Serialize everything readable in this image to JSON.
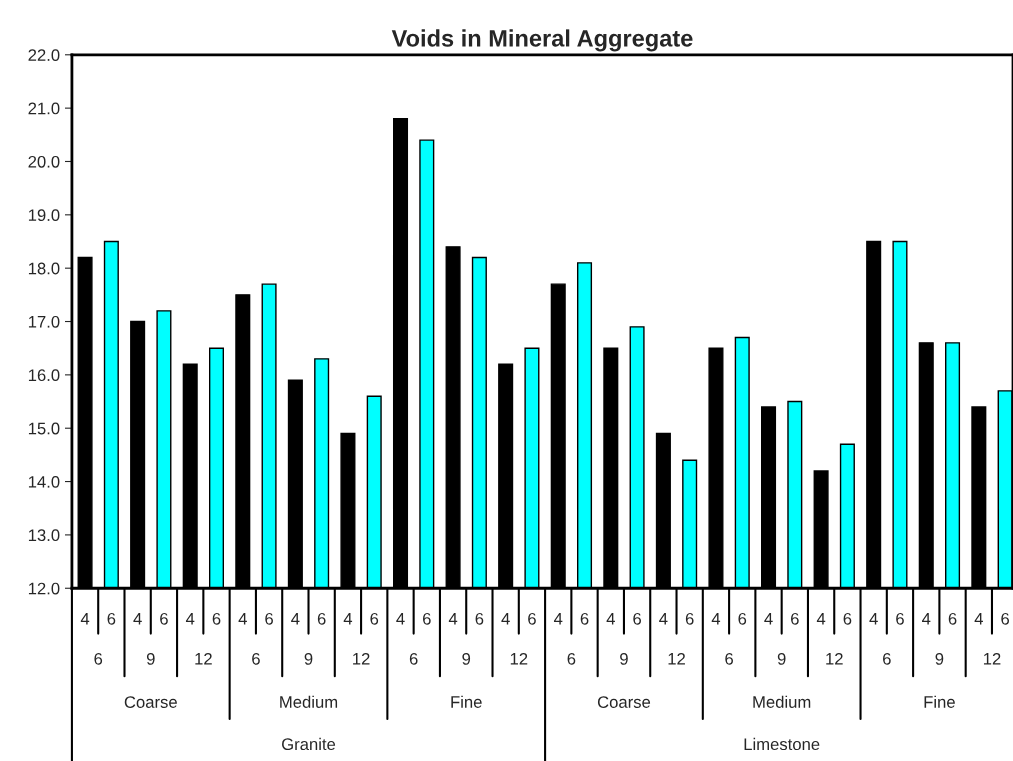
{
  "chart_data": {
    "type": "bar",
    "title": "Voids in Mineral Aggregate",
    "categories": [
      "4",
      "6",
      "4",
      "6",
      "4",
      "6",
      "4",
      "6",
      "4",
      "6",
      "4",
      "6",
      "4",
      "6",
      "4",
      "6",
      "4",
      "6",
      "4",
      "6",
      "4",
      "6",
      "4",
      "6",
      "4",
      "6",
      "4",
      "6",
      "4",
      "6",
      "4",
      "6",
      "4",
      "6",
      "4",
      "6"
    ],
    "values": [
      18.2,
      18.5,
      17.0,
      17.2,
      16.2,
      16.5,
      17.5,
      17.7,
      15.9,
      16.3,
      14.9,
      15.6,
      20.8,
      20.4,
      18.4,
      18.2,
      16.2,
      16.5,
      17.7,
      18.1,
      16.5,
      16.9,
      14.9,
      14.4,
      16.5,
      16.7,
      15.4,
      15.5,
      14.2,
      14.7,
      18.5,
      18.5,
      16.6,
      16.6,
      15.4,
      15.7
    ],
    "colors": [
      "#000000",
      "#00ffff",
      "#000000",
      "#00ffff",
      "#000000",
      "#00ffff",
      "#000000",
      "#00ffff",
      "#000000",
      "#00ffff",
      "#000000",
      "#00ffff",
      "#000000",
      "#00ffff",
      "#000000",
      "#00ffff",
      "#000000",
      "#00ffff",
      "#000000",
      "#00ffff",
      "#000000",
      "#00ffff",
      "#000000",
      "#00ffff",
      "#000000",
      "#00ffff",
      "#000000",
      "#00ffff",
      "#000000",
      "#00ffff",
      "#000000",
      "#00ffff",
      "#000000",
      "#00ffff",
      "#000000",
      "#00ffff"
    ],
    "ylim": [
      12,
      22
    ],
    "yticks": [
      {
        "value": 12,
        "label": "12.0"
      },
      {
        "value": 13,
        "label": "13.0"
      },
      {
        "value": 14,
        "label": "14.0"
      },
      {
        "value": 15,
        "label": "15.0"
      },
      {
        "value": 16,
        "label": "16.0"
      },
      {
        "value": 17,
        "label": "17.0"
      },
      {
        "value": 18,
        "label": "18.0"
      },
      {
        "value": 19,
        "label": "19.0"
      },
      {
        "value": 20,
        "label": "20.0"
      },
      {
        "value": 21,
        "label": "21.0"
      },
      {
        "value": 22,
        "label": "22.0"
      }
    ],
    "annotations": [
      "6",
      "9",
      "12",
      "6",
      "9",
      "12",
      "6",
      "9",
      "12",
      "6",
      "9",
      "12",
      "6",
      "9",
      "12",
      "6",
      "9",
      "12",
      "Coarse",
      "Medium",
      "Fine",
      "Coarse",
      "Medium",
      "Fine",
      "Granite",
      "Limestone"
    ],
    "grid": false,
    "legend": false
  }
}
